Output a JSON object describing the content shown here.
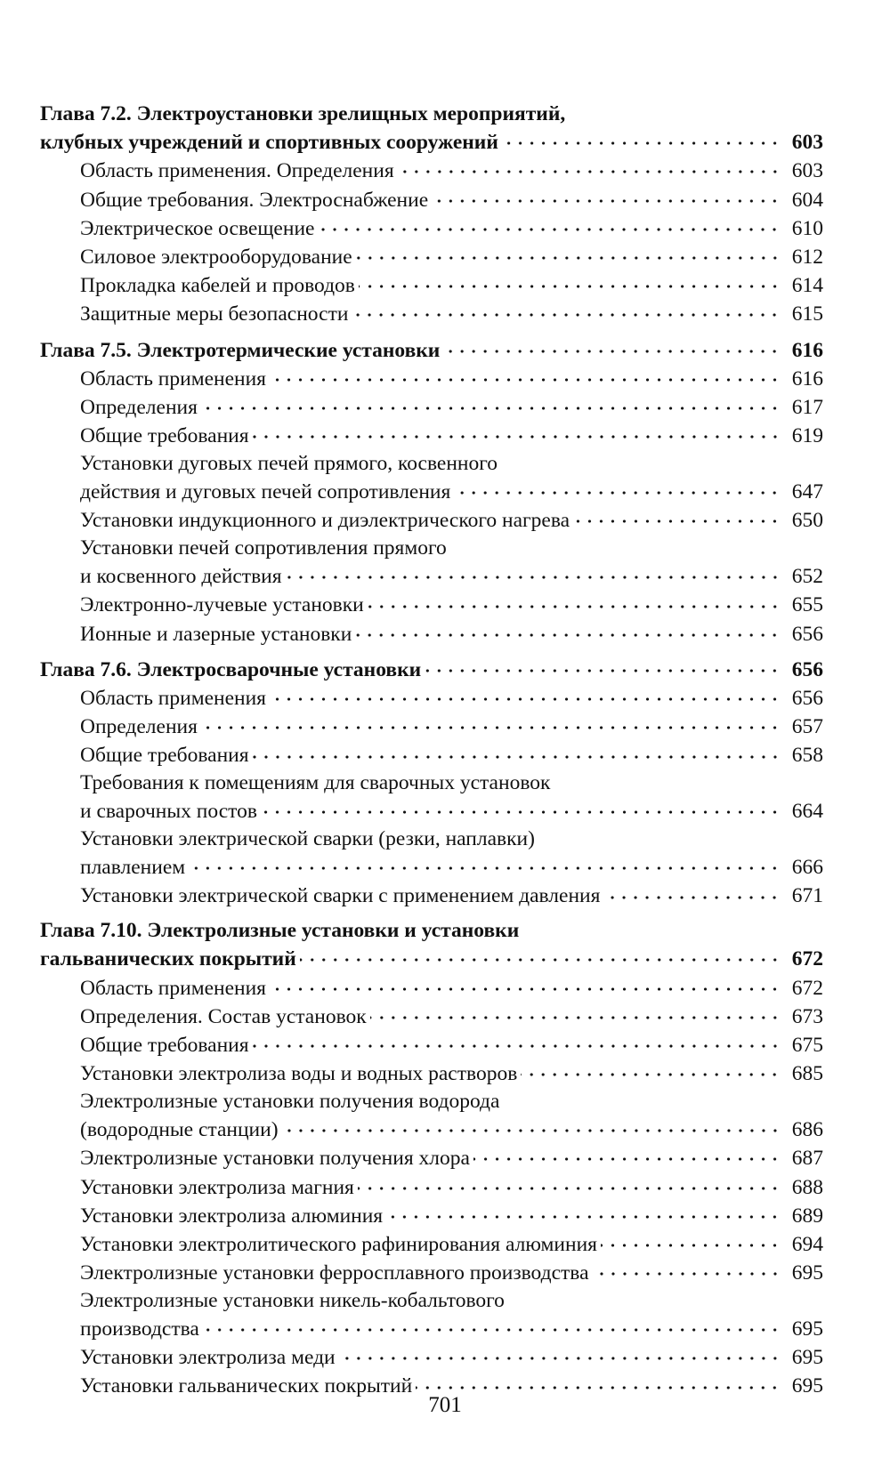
{
  "chapters": [
    {
      "title_lines": [
        "Глава 7.2. Электроустановки зрелищных мероприятий,",
        "клубных учреждений и спортивных сооружений"
      ],
      "page": "603",
      "items": [
        {
          "title_lines": [
            "Область применения. Определения"
          ],
          "page": "603"
        },
        {
          "title_lines": [
            "Общие требования. Электроснабжение"
          ],
          "page": "604"
        },
        {
          "title_lines": [
            "Электрическое освещение"
          ],
          "page": "610"
        },
        {
          "title_lines": [
            "Силовое электрооборудование"
          ],
          "page": "612"
        },
        {
          "title_lines": [
            "Прокладка кабелей и проводов"
          ],
          "page": "614"
        },
        {
          "title_lines": [
            "Защитные меры безопасности"
          ],
          "page": "615"
        }
      ]
    },
    {
      "title_lines": [
        "Глава 7.5. Электротермические установки"
      ],
      "page": "616",
      "items": [
        {
          "title_lines": [
            "Область применения"
          ],
          "page": "616"
        },
        {
          "title_lines": [
            "Определения"
          ],
          "page": "617"
        },
        {
          "title_lines": [
            "Общие требования"
          ],
          "page": "619"
        },
        {
          "title_lines": [
            "Установки дуговых печей прямого, косвенного",
            "действия и дуговых печей сопротивления"
          ],
          "page": "647"
        },
        {
          "title_lines": [
            "Установки индукционного и диэлектрического нагрева"
          ],
          "page": "650"
        },
        {
          "title_lines": [
            "Установки печей сопротивления прямого",
            "и косвенного действия"
          ],
          "page": "652"
        },
        {
          "title_lines": [
            "Электронно-лучевые установки"
          ],
          "page": "655"
        },
        {
          "title_lines": [
            "Ионные и лазерные установки"
          ],
          "page": "656"
        }
      ]
    },
    {
      "title_lines": [
        "Глава 7.6. Электросварочные установки"
      ],
      "page": "656",
      "items": [
        {
          "title_lines": [
            "Область применения"
          ],
          "page": "656"
        },
        {
          "title_lines": [
            "Определения"
          ],
          "page": "657"
        },
        {
          "title_lines": [
            "Общие требования"
          ],
          "page": "658"
        },
        {
          "title_lines": [
            "Требования к помещениям для сварочных установок",
            "и сварочных постов"
          ],
          "page": "664"
        },
        {
          "title_lines": [
            "Установки электрической сварки (резки, наплавки)",
            "плавлением"
          ],
          "page": "666"
        },
        {
          "title_lines": [
            "Установки электрической сварки с применением давления"
          ],
          "page": "671"
        }
      ]
    },
    {
      "title_lines": [
        "Глава 7.10. Электролизные установки и установки",
        "гальванических покрытий"
      ],
      "page": "672",
      "items": [
        {
          "title_lines": [
            "Область применения"
          ],
          "page": "672"
        },
        {
          "title_lines": [
            "Определения. Состав установок"
          ],
          "page": "673"
        },
        {
          "title_lines": [
            "Общие требования"
          ],
          "page": "675"
        },
        {
          "title_lines": [
            "Установки электролиза воды и водных растворов"
          ],
          "page": "685"
        },
        {
          "title_lines": [
            "Электролизные установки получения водорода",
            "(водородные станции)"
          ],
          "page": "686"
        },
        {
          "title_lines": [
            "Электролизные установки получения хлора"
          ],
          "page": "687"
        },
        {
          "title_lines": [
            "Установки электролиза магния"
          ],
          "page": "688"
        },
        {
          "title_lines": [
            "Установки электролиза алюминия"
          ],
          "page": "689"
        },
        {
          "title_lines": [
            "Установки электролитического рафинирования алюминия"
          ],
          "page": "694"
        },
        {
          "title_lines": [
            "Электролизные установки ферросплавного производства"
          ],
          "page": "695"
        },
        {
          "title_lines": [
            "Электролизные установки никель-кобальтового",
            "производства"
          ],
          "page": "695"
        },
        {
          "title_lines": [
            "Установки электролиза меди"
          ],
          "page": "695"
        },
        {
          "title_lines": [
            "Установки гальванических покрытий"
          ],
          "page": "695"
        }
      ]
    }
  ],
  "folio": "701"
}
